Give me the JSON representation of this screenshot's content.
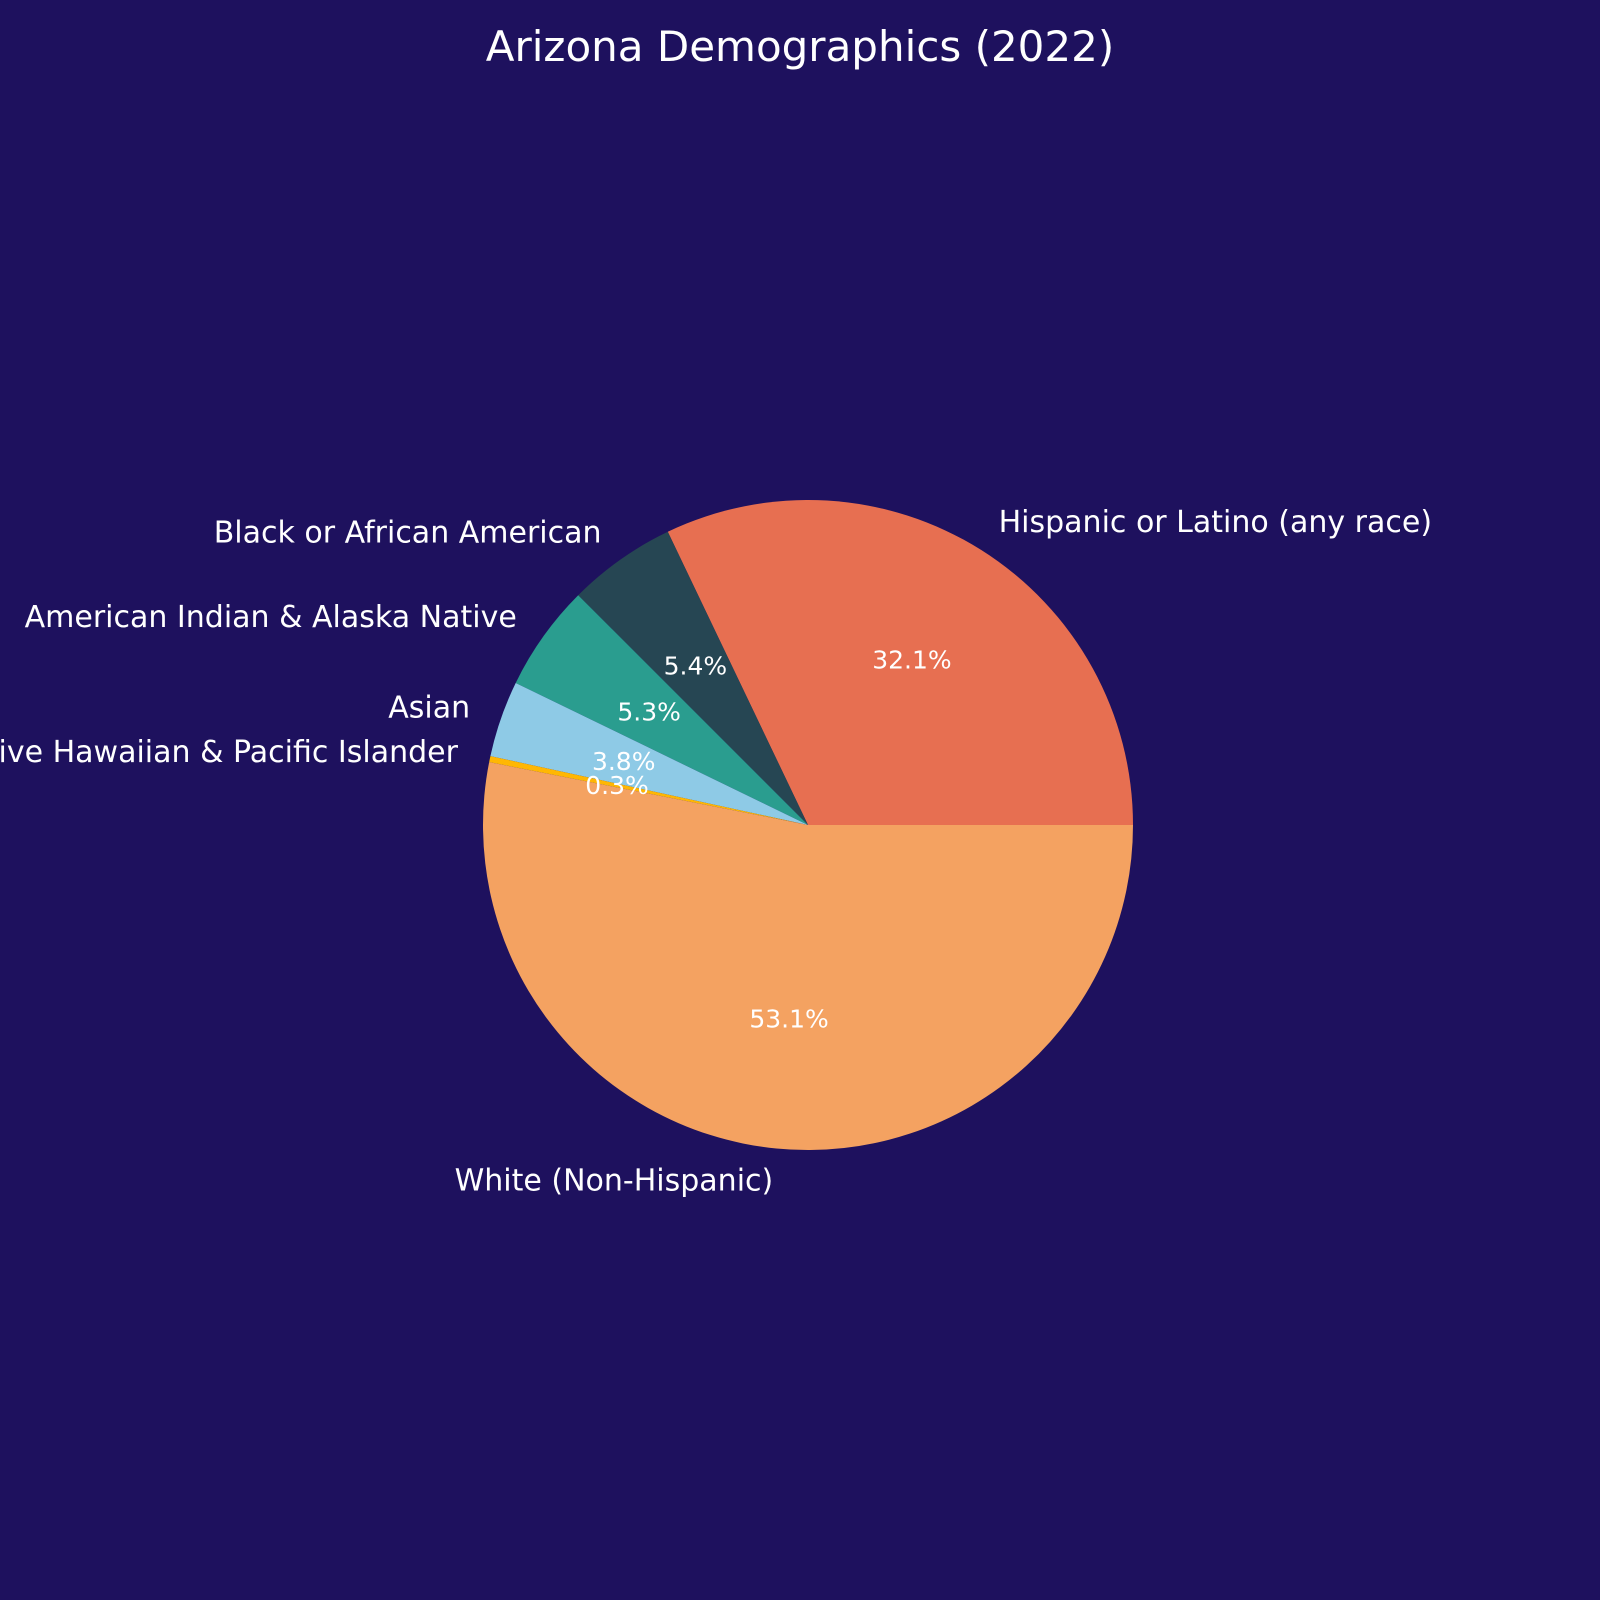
{
  "chart_data": {
    "type": "pie",
    "title": "Arizona Demographics (2022)",
    "start_angle_deg": 0,
    "direction": "counterclockwise",
    "slices": [
      {
        "label": "Hispanic or Latino (any race)",
        "value": 32.1,
        "pct_label": "32.1%",
        "color": "#e76f51"
      },
      {
        "label": "Black or African American",
        "value": 5.4,
        "pct_label": "5.4%",
        "color": "#264653"
      },
      {
        "label": "American Indian & Alaska Native",
        "value": 5.3,
        "pct_label": "5.3%",
        "color": "#2a9d8f"
      },
      {
        "label": "Asian",
        "value": 3.8,
        "pct_label": "3.8%",
        "color": "#8ecae6"
      },
      {
        "label": "Native Hawaiian & Pacific Islander",
        "value": 0.3,
        "pct_label": "0.3%",
        "color": "#ffb703"
      },
      {
        "label": "White (Non-Hispanic)",
        "value": 53.1,
        "pct_label": "53.1%",
        "color": "#f4a261"
      }
    ]
  },
  "colors": {
    "background": "#1e115e",
    "text": "#ffffff"
  }
}
